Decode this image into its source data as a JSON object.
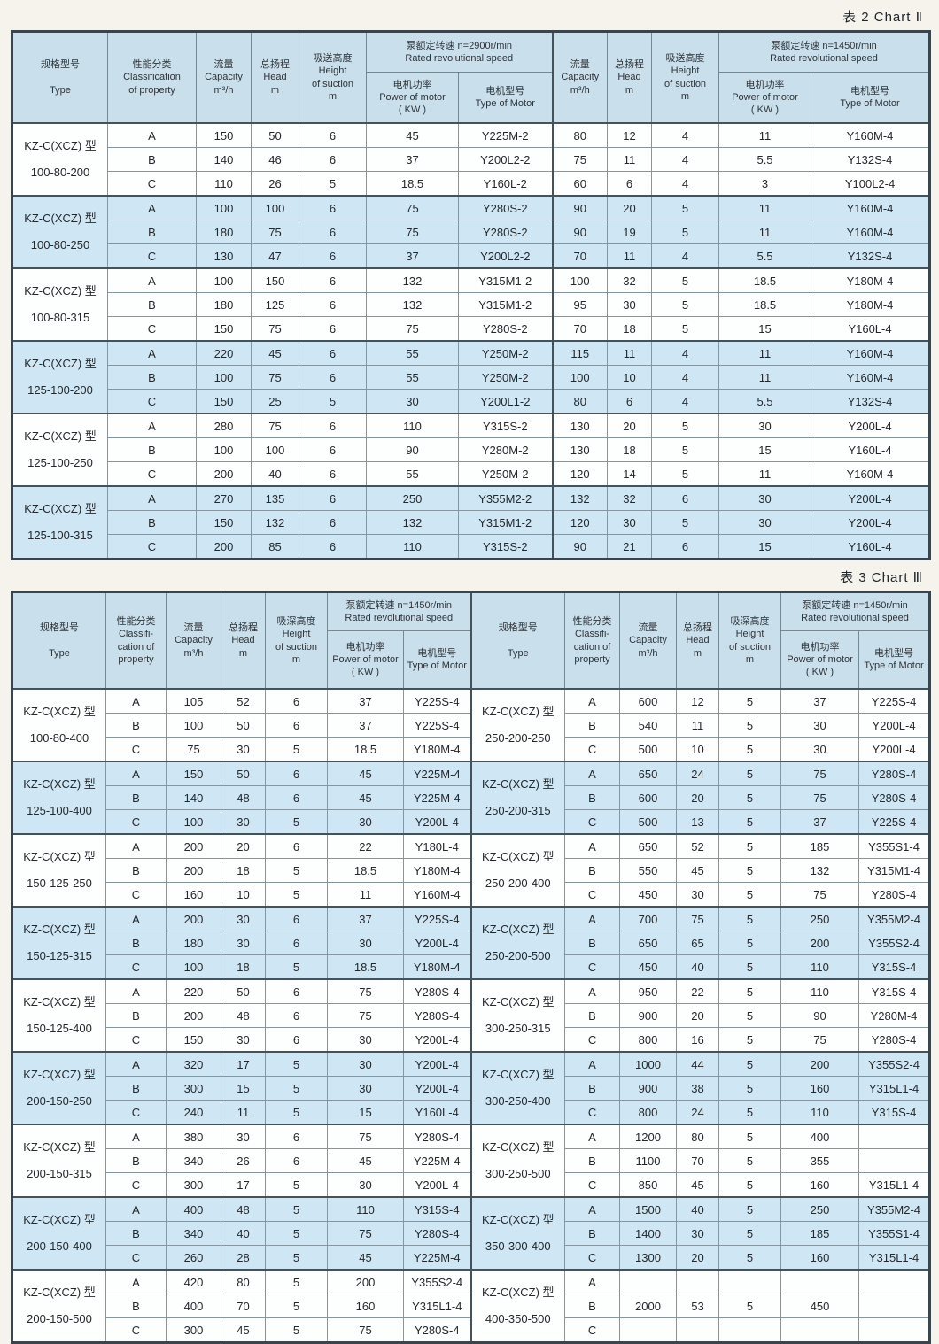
{
  "colors": {
    "header_bg": "#c9dfec",
    "row_shade": "#cfe7f5",
    "row_plain": "#fdfefe",
    "border_dark": "#39444c",
    "border_light": "#8596a0"
  },
  "chart2": {
    "title": "表 2  Chart Ⅱ",
    "header": {
      "type": "规格型号\n\nType",
      "classification": "性能分类\nClassification\nof property",
      "capacity": "流量\nCapacity\nm³/h",
      "head": "总扬程\nHead\nm",
      "suction": "吸送高度\nHeight\nof suction\nm",
      "speed_2900": "泵额定转速 n=2900r/min\nRated revolutional speed",
      "speed_1450": "泵额定转速 n=1450r/min\nRated revolutional speed",
      "power": "电机功率\nPower of motor\n( KW )",
      "motor": "电机型号\nType of Motor"
    },
    "groups": [
      {
        "model": "KZ-C(XCZ) 型",
        "size": "100-80-200",
        "shaded": false,
        "rows": [
          [
            "A",
            "150",
            "50",
            "6",
            "45",
            "Y225M-2",
            "80",
            "12",
            "4",
            "11",
            "Y160M-4"
          ],
          [
            "B",
            "140",
            "46",
            "6",
            "37",
            "Y200L2-2",
            "75",
            "11",
            "4",
            "5.5",
            "Y132S-4"
          ],
          [
            "C",
            "110",
            "26",
            "5",
            "18.5",
            "Y160L-2",
            "60",
            "6",
            "4",
            "3",
            "Y100L2-4"
          ]
        ]
      },
      {
        "model": "KZ-C(XCZ) 型",
        "size": "100-80-250",
        "shaded": true,
        "rows": [
          [
            "A",
            "100",
            "100",
            "6",
            "75",
            "Y280S-2",
            "90",
            "20",
            "5",
            "11",
            "Y160M-4"
          ],
          [
            "B",
            "180",
            "75",
            "6",
            "75",
            "Y280S-2",
            "90",
            "19",
            "5",
            "11",
            "Y160M-4"
          ],
          [
            "C",
            "130",
            "47",
            "6",
            "37",
            "Y200L2-2",
            "70",
            "11",
            "4",
            "5.5",
            "Y132S-4"
          ]
        ]
      },
      {
        "model": "KZ-C(XCZ) 型",
        "size": "100-80-315",
        "shaded": false,
        "rows": [
          [
            "A",
            "100",
            "150",
            "6",
            "132",
            "Y315M1-2",
            "100",
            "32",
            "5",
            "18.5",
            "Y180M-4"
          ],
          [
            "B",
            "180",
            "125",
            "6",
            "132",
            "Y315M1-2",
            "95",
            "30",
            "5",
            "18.5",
            "Y180M-4"
          ],
          [
            "C",
            "150",
            "75",
            "6",
            "75",
            "Y280S-2",
            "70",
            "18",
            "5",
            "15",
            "Y160L-4"
          ]
        ]
      },
      {
        "model": "KZ-C(XCZ) 型",
        "size": "125-100-200",
        "shaded": true,
        "rows": [
          [
            "A",
            "220",
            "45",
            "6",
            "55",
            "Y250M-2",
            "115",
            "11",
            "4",
            "11",
            "Y160M-4"
          ],
          [
            "B",
            "100",
            "75",
            "6",
            "55",
            "Y250M-2",
            "100",
            "10",
            "4",
            "11",
            "Y160M-4"
          ],
          [
            "C",
            "150",
            "25",
            "5",
            "30",
            "Y200L1-2",
            "80",
            "6",
            "4",
            "5.5",
            "Y132S-4"
          ]
        ]
      },
      {
        "model": "KZ-C(XCZ) 型",
        "size": "125-100-250",
        "shaded": false,
        "rows": [
          [
            "A",
            "280",
            "75",
            "6",
            "110",
            "Y315S-2",
            "130",
            "20",
            "5",
            "30",
            "Y200L-4"
          ],
          [
            "B",
            "100",
            "100",
            "6",
            "90",
            "Y280M-2",
            "130",
            "18",
            "5",
            "15",
            "Y160L-4"
          ],
          [
            "C",
            "200",
            "40",
            "6",
            "55",
            "Y250M-2",
            "120",
            "14",
            "5",
            "11",
            "Y160M-4"
          ]
        ]
      },
      {
        "model": "KZ-C(XCZ) 型",
        "size": "125-100-315",
        "shaded": true,
        "rows": [
          [
            "A",
            "270",
            "135",
            "6",
            "250",
            "Y355M2-2",
            "132",
            "32",
            "6",
            "30",
            "Y200L-4"
          ],
          [
            "B",
            "150",
            "132",
            "6",
            "132",
            "Y315M1-2",
            "120",
            "30",
            "5",
            "30",
            "Y200L-4"
          ],
          [
            "C",
            "200",
            "85",
            "6",
            "110",
            "Y315S-2",
            "90",
            "21",
            "6",
            "15",
            "Y160L-4"
          ]
        ]
      }
    ]
  },
  "chart3": {
    "title": "表 3  Chart Ⅲ",
    "header": {
      "type": "规格型号\n\nType",
      "classification": "性能分类\nClassifi-\ncation of\nproperty",
      "capacity": "流量\nCapacity\nm³/h",
      "head": "总扬程\nHead\nm",
      "suction": "吸深高度\nHeight\nof suction\nm",
      "speed": "泵额定转速 n=1450r/min\nRated revolutional speed",
      "power": "电机功率\nPower of motor\n( KW )",
      "motor": "电机型号\nType of Motor"
    },
    "left_groups": [
      {
        "model": "KZ-C(XCZ) 型",
        "size": "100-80-400",
        "shaded": false,
        "rows": [
          [
            "A",
            "105",
            "52",
            "6",
            "37",
            "Y225S-4"
          ],
          [
            "B",
            "100",
            "50",
            "6",
            "37",
            "Y225S-4"
          ],
          [
            "C",
            "75",
            "30",
            "5",
            "18.5",
            "Y180M-4"
          ]
        ]
      },
      {
        "model": "KZ-C(XCZ) 型",
        "size": "125-100-400",
        "shaded": true,
        "rows": [
          [
            "A",
            "150",
            "50",
            "6",
            "45",
            "Y225M-4"
          ],
          [
            "B",
            "140",
            "48",
            "6",
            "45",
            "Y225M-4"
          ],
          [
            "C",
            "100",
            "30",
            "5",
            "30",
            "Y200L-4"
          ]
        ]
      },
      {
        "model": "KZ-C(XCZ) 型",
        "size": "150-125-250",
        "shaded": false,
        "rows": [
          [
            "A",
            "200",
            "20",
            "6",
            "22",
            "Y180L-4"
          ],
          [
            "B",
            "200",
            "18",
            "5",
            "18.5",
            "Y180M-4"
          ],
          [
            "C",
            "160",
            "10",
            "5",
            "11",
            "Y160M-4"
          ]
        ]
      },
      {
        "model": "KZ-C(XCZ) 型",
        "size": "150-125-315",
        "shaded": true,
        "rows": [
          [
            "A",
            "200",
            "30",
            "6",
            "37",
            "Y225S-4"
          ],
          [
            "B",
            "180",
            "30",
            "6",
            "30",
            "Y200L-4"
          ],
          [
            "C",
            "100",
            "18",
            "5",
            "18.5",
            "Y180M-4"
          ]
        ]
      },
      {
        "model": "KZ-C(XCZ) 型",
        "size": "150-125-400",
        "shaded": false,
        "rows": [
          [
            "A",
            "220",
            "50",
            "6",
            "75",
            "Y280S-4"
          ],
          [
            "B",
            "200",
            "48",
            "6",
            "75",
            "Y280S-4"
          ],
          [
            "C",
            "150",
            "30",
            "6",
            "30",
            "Y200L-4"
          ]
        ]
      },
      {
        "model": "KZ-C(XCZ) 型",
        "size": "200-150-250",
        "shaded": true,
        "rows": [
          [
            "A",
            "320",
            "17",
            "5",
            "30",
            "Y200L-4"
          ],
          [
            "B",
            "300",
            "15",
            "5",
            "30",
            "Y200L-4"
          ],
          [
            "C",
            "240",
            "11",
            "5",
            "15",
            "Y160L-4"
          ]
        ]
      },
      {
        "model": "KZ-C(XCZ) 型",
        "size": "200-150-315",
        "shaded": false,
        "rows": [
          [
            "A",
            "380",
            "30",
            "6",
            "75",
            "Y280S-4"
          ],
          [
            "B",
            "340",
            "26",
            "6",
            "45",
            "Y225M-4"
          ],
          [
            "C",
            "300",
            "17",
            "5",
            "30",
            "Y200L-4"
          ]
        ]
      },
      {
        "model": "KZ-C(XCZ) 型",
        "size": "200-150-400",
        "shaded": true,
        "rows": [
          [
            "A",
            "400",
            "48",
            "5",
            "110",
            "Y315S-4"
          ],
          [
            "B",
            "340",
            "40",
            "5",
            "75",
            "Y280S-4"
          ],
          [
            "C",
            "260",
            "28",
            "5",
            "45",
            "Y225M-4"
          ]
        ]
      },
      {
        "model": "KZ-C(XCZ) 型",
        "size": "200-150-500",
        "shaded": false,
        "rows": [
          [
            "A",
            "420",
            "80",
            "5",
            "200",
            "Y355S2-4"
          ],
          [
            "B",
            "400",
            "70",
            "5",
            "160",
            "Y315L1-4"
          ],
          [
            "C",
            "300",
            "45",
            "5",
            "75",
            "Y280S-4"
          ]
        ]
      }
    ],
    "right_groups": [
      {
        "model": "KZ-C(XCZ) 型",
        "size": "250-200-250",
        "shaded": false,
        "rows": [
          [
            "A",
            "600",
            "12",
            "5",
            "37",
            "Y225S-4"
          ],
          [
            "B",
            "540",
            "11",
            "5",
            "30",
            "Y200L-4"
          ],
          [
            "C",
            "500",
            "10",
            "5",
            "30",
            "Y200L-4"
          ]
        ]
      },
      {
        "model": "KZ-C(XCZ) 型",
        "size": "250-200-315",
        "shaded": true,
        "rows": [
          [
            "A",
            "650",
            "24",
            "5",
            "75",
            "Y280S-4"
          ],
          [
            "B",
            "600",
            "20",
            "5",
            "75",
            "Y280S-4"
          ],
          [
            "C",
            "500",
            "13",
            "5",
            "37",
            "Y225S-4"
          ]
        ]
      },
      {
        "model": "KZ-C(XCZ) 型",
        "size": "250-200-400",
        "shaded": false,
        "rows": [
          [
            "A",
            "650",
            "52",
            "5",
            "185",
            "Y355S1-4"
          ],
          [
            "B",
            "550",
            "45",
            "5",
            "132",
            "Y315M1-4"
          ],
          [
            "C",
            "450",
            "30",
            "5",
            "75",
            "Y280S-4"
          ]
        ]
      },
      {
        "model": "KZ-C(XCZ) 型",
        "size": "250-200-500",
        "shaded": true,
        "rows": [
          [
            "A",
            "700",
            "75",
            "5",
            "250",
            "Y355M2-4"
          ],
          [
            "B",
            "650",
            "65",
            "5",
            "200",
            "Y355S2-4"
          ],
          [
            "C",
            "450",
            "40",
            "5",
            "110",
            "Y315S-4"
          ]
        ]
      },
      {
        "model": "KZ-C(XCZ) 型",
        "size": "300-250-315",
        "shaded": false,
        "rows": [
          [
            "A",
            "950",
            "22",
            "5",
            "110",
            "Y315S-4"
          ],
          [
            "B",
            "900",
            "20",
            "5",
            "90",
            "Y280M-4"
          ],
          [
            "C",
            "800",
            "16",
            "5",
            "75",
            "Y280S-4"
          ]
        ]
      },
      {
        "model": "KZ-C(XCZ) 型",
        "size": "300-250-400",
        "shaded": true,
        "rows": [
          [
            "A",
            "1000",
            "44",
            "5",
            "200",
            "Y355S2-4"
          ],
          [
            "B",
            "900",
            "38",
            "5",
            "160",
            "Y315L1-4"
          ],
          [
            "C",
            "800",
            "24",
            "5",
            "110",
            "Y315S-4"
          ]
        ]
      },
      {
        "model": "KZ-C(XCZ) 型",
        "size": "300-250-500",
        "shaded": false,
        "rows": [
          [
            "A",
            "1200",
            "80",
            "5",
            "400",
            ""
          ],
          [
            "B",
            "1100",
            "70",
            "5",
            "355",
            ""
          ],
          [
            "C",
            "850",
            "45",
            "5",
            "160",
            "Y315L1-4"
          ]
        ]
      },
      {
        "model": "KZ-C(XCZ) 型",
        "size": "350-300-400",
        "shaded": true,
        "rows": [
          [
            "A",
            "1500",
            "40",
            "5",
            "250",
            "Y355M2-4"
          ],
          [
            "B",
            "1400",
            "30",
            "5",
            "185",
            "Y355S1-4"
          ],
          [
            "C",
            "1300",
            "20",
            "5",
            "160",
            "Y315L1-4"
          ]
        ]
      },
      {
        "model": "KZ-C(XCZ) 型",
        "size": "400-350-500",
        "shaded": false,
        "rows": [
          [
            "A",
            "",
            "",
            "",
            "",
            ""
          ],
          [
            "B",
            "2000",
            "53",
            "5",
            "450",
            ""
          ],
          [
            "C",
            "",
            "",
            "",
            "",
            ""
          ]
        ]
      }
    ]
  }
}
